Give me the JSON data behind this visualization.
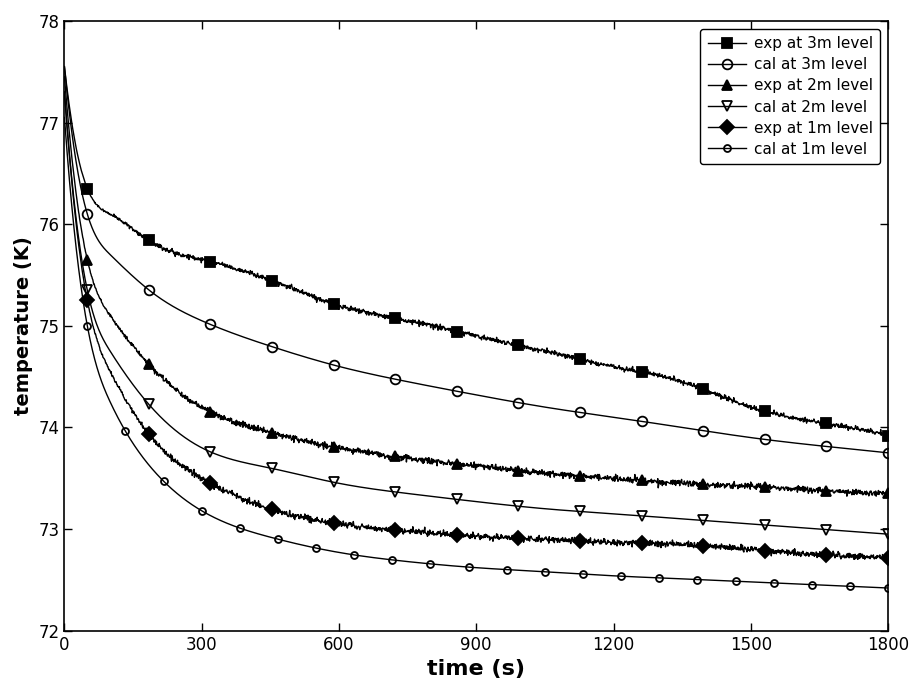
{
  "title": "",
  "xlabel": "time (s)",
  "ylabel": "temperature (K)",
  "xlim": [
    0,
    1800
  ],
  "ylim": [
    72,
    78
  ],
  "xticks": [
    0,
    300,
    600,
    900,
    1200,
    1500,
    1800
  ],
  "yticks": [
    72,
    73,
    74,
    75,
    76,
    77,
    78
  ],
  "background_color": "#ffffff",
  "series": {
    "exp_3m": {
      "label": "exp at 3m level",
      "marker": "s",
      "marker_size": 7,
      "fillstyle": "full",
      "color": "#000000",
      "linewidth": 1.0,
      "noise_std": 0.012,
      "n_markers": 14,
      "points": [
        [
          0,
          77.55
        ],
        [
          50,
          76.35
        ],
        [
          100,
          76.1
        ],
        [
          200,
          75.8
        ],
        [
          300,
          75.65
        ],
        [
          450,
          75.45
        ],
        [
          600,
          75.2
        ],
        [
          750,
          75.05
        ],
        [
          900,
          74.9
        ],
        [
          1050,
          74.75
        ],
        [
          1200,
          74.6
        ],
        [
          1350,
          74.45
        ],
        [
          1500,
          74.2
        ],
        [
          1650,
          74.05
        ],
        [
          1800,
          73.92
        ]
      ]
    },
    "cal_3m": {
      "label": "cal at 3m level",
      "marker": "o",
      "marker_size": 7,
      "fillstyle": "none",
      "color": "#000000",
      "linewidth": 1.0,
      "noise_std": 0.0,
      "n_markers": 14,
      "points": [
        [
          0,
          77.55
        ],
        [
          50,
          76.1
        ],
        [
          100,
          75.7
        ],
        [
          200,
          75.3
        ],
        [
          300,
          75.05
        ],
        [
          450,
          74.8
        ],
        [
          600,
          74.6
        ],
        [
          750,
          74.45
        ],
        [
          900,
          74.32
        ],
        [
          1050,
          74.2
        ],
        [
          1200,
          74.1
        ],
        [
          1350,
          74.0
        ],
        [
          1500,
          73.9
        ],
        [
          1650,
          73.82
        ],
        [
          1800,
          73.75
        ]
      ]
    },
    "exp_2m": {
      "label": "exp at 2m level",
      "marker": "^",
      "marker_size": 7,
      "fillstyle": "full",
      "color": "#000000",
      "linewidth": 1.0,
      "noise_std": 0.015,
      "n_markers": 14,
      "points": [
        [
          0,
          77.45
        ],
        [
          50,
          75.65
        ],
        [
          100,
          75.1
        ],
        [
          200,
          74.55
        ],
        [
          300,
          74.2
        ],
        [
          450,
          73.95
        ],
        [
          600,
          73.8
        ],
        [
          750,
          73.7
        ],
        [
          900,
          73.62
        ],
        [
          1050,
          73.55
        ],
        [
          1200,
          73.5
        ],
        [
          1350,
          73.45
        ],
        [
          1500,
          73.42
        ],
        [
          1650,
          73.38
        ],
        [
          1800,
          73.35
        ]
      ]
    },
    "cal_2m": {
      "label": "cal at 2m level",
      "marker": "v",
      "marker_size": 7,
      "fillstyle": "none",
      "color": "#000000",
      "linewidth": 1.0,
      "noise_std": 0.0,
      "n_markers": 14,
      "points": [
        [
          0,
          77.3
        ],
        [
          50,
          75.35
        ],
        [
          100,
          74.75
        ],
        [
          200,
          74.15
        ],
        [
          300,
          73.8
        ],
        [
          450,
          73.6
        ],
        [
          600,
          73.45
        ],
        [
          750,
          73.35
        ],
        [
          900,
          73.27
        ],
        [
          1050,
          73.2
        ],
        [
          1200,
          73.15
        ],
        [
          1350,
          73.1
        ],
        [
          1500,
          73.05
        ],
        [
          1650,
          73.0
        ],
        [
          1800,
          72.95
        ]
      ]
    },
    "exp_1m": {
      "label": "exp at 1m level",
      "marker": "D",
      "marker_size": 7,
      "fillstyle": "full",
      "color": "#000000",
      "linewidth": 1.0,
      "noise_std": 0.015,
      "n_markers": 14,
      "points": [
        [
          0,
          77.3
        ],
        [
          50,
          75.25
        ],
        [
          100,
          74.55
        ],
        [
          200,
          73.85
        ],
        [
          300,
          73.5
        ],
        [
          450,
          73.2
        ],
        [
          600,
          73.05
        ],
        [
          750,
          72.98
        ],
        [
          900,
          72.93
        ],
        [
          1050,
          72.9
        ],
        [
          1200,
          72.87
        ],
        [
          1350,
          72.85
        ],
        [
          1500,
          72.8
        ],
        [
          1650,
          72.75
        ],
        [
          1800,
          72.72
        ]
      ]
    },
    "cal_1m": {
      "label": "cal at 1m level",
      "marker": "o",
      "marker_size": 5,
      "fillstyle": "none",
      "color": "#000000",
      "linewidth": 1.0,
      "noise_std": 0.0,
      "n_markers": 22,
      "points": [
        [
          0,
          77.05
        ],
        [
          50,
          75.0
        ],
        [
          100,
          74.25
        ],
        [
          200,
          73.55
        ],
        [
          300,
          73.18
        ],
        [
          450,
          72.92
        ],
        [
          600,
          72.77
        ],
        [
          750,
          72.68
        ],
        [
          900,
          72.62
        ],
        [
          1050,
          72.58
        ],
        [
          1200,
          72.54
        ],
        [
          1350,
          72.51
        ],
        [
          1500,
          72.48
        ],
        [
          1650,
          72.45
        ],
        [
          1800,
          72.42
        ]
      ]
    }
  }
}
